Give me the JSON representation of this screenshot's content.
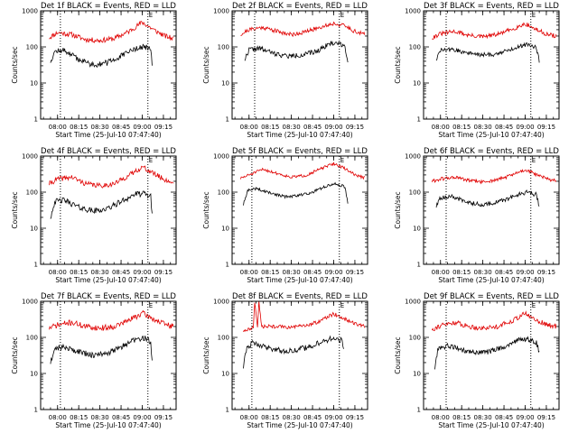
{
  "figure": {
    "background": "#ffffff"
  },
  "chart_data": [
    {
      "type": "line",
      "title": "Det 1f BLACK = Events, RED = LLD",
      "xlabel": "Start Time (25-Jul-10 07:47:40)",
      "ylabel": "Counts/sec",
      "yscale": "log",
      "ylim": [
        1,
        1000
      ],
      "xlim": [
        "07:48",
        "09:24"
      ],
      "x_ticks": [
        "08:00",
        "08:15",
        "08:30",
        "08:45",
        "09:00",
        "09:15"
      ],
      "y_ticks": [
        "1",
        "10",
        "100",
        "1000"
      ],
      "markers": [
        {
          "time": "08:02",
          "label": ""
        },
        {
          "time": "09:04",
          "label": "E"
        }
      ],
      "series": [
        {
          "name": "LLD",
          "color": "#e00000",
          "x": [
            "07:54",
            "08:00",
            "08:10",
            "08:20",
            "08:30",
            "08:40",
            "08:50",
            "09:00",
            "09:08",
            "09:16",
            "09:22"
          ],
          "y": [
            180,
            250,
            220,
            160,
            150,
            170,
            260,
            480,
            300,
            200,
            170
          ],
          "noise": 0.07,
          "seed": 11
        },
        {
          "name": "Events",
          "color": "#000000",
          "x": [
            "07:55",
            "07:58",
            "08:05",
            "08:15",
            "08:25",
            "08:35",
            "08:45",
            "08:55",
            "09:02",
            "09:06",
            "09:07"
          ],
          "y": [
            40,
            75,
            80,
            45,
            32,
            36,
            55,
            90,
            100,
            85,
            30
          ],
          "noise": 0.08,
          "seed": 12
        }
      ]
    },
    {
      "type": "line",
      "title": "Det 2f BLACK = Events, RED = LLD",
      "xlabel": "Start Time (25-Jul-10 07:47:40)",
      "ylabel": "Counts/sec",
      "yscale": "log",
      "ylim": [
        1,
        1000
      ],
      "xlim": [
        "07:48",
        "09:24"
      ],
      "x_ticks": [
        "08:00",
        "08:15",
        "08:30",
        "08:45",
        "09:00",
        "09:15"
      ],
      "y_ticks": [
        "1",
        "10",
        "100",
        "1000"
      ],
      "markers": [
        {
          "time": "08:04",
          "label": ""
        },
        {
          "time": "09:04",
          "label": "E"
        }
      ],
      "series": [
        {
          "name": "LLD",
          "color": "#e00000",
          "x": [
            "07:54",
            "08:00",
            "08:10",
            "08:20",
            "08:30",
            "08:40",
            "08:50",
            "09:00",
            "09:08",
            "09:16",
            "09:22"
          ],
          "y": [
            220,
            300,
            350,
            270,
            220,
            260,
            350,
            450,
            380,
            260,
            220
          ],
          "noise": 0.06,
          "seed": 21
        },
        {
          "name": "Events",
          "color": "#000000",
          "x": [
            "07:57",
            "08:00",
            "08:08",
            "08:18",
            "08:28",
            "08:38",
            "08:48",
            "08:56",
            "09:02",
            "09:08",
            "09:10"
          ],
          "y": [
            45,
            85,
            90,
            65,
            55,
            60,
            75,
            120,
            130,
            110,
            35
          ],
          "noise": 0.07,
          "seed": 22
        }
      ]
    },
    {
      "type": "line",
      "title": "Det 3f BLACK = Events, RED = LLD",
      "xlabel": "Start Time (25-Jul-10 07:47:40)",
      "ylabel": "Counts/sec",
      "yscale": "log",
      "ylim": [
        1,
        1000
      ],
      "xlim": [
        "07:48",
        "09:24"
      ],
      "x_ticks": [
        "08:00",
        "08:15",
        "08:30",
        "08:45",
        "09:00",
        "09:15"
      ],
      "y_ticks": [
        "1",
        "10",
        "100",
        "1000"
      ],
      "markers": [
        {
          "time": "08:04",
          "label": ""
        },
        {
          "time": "09:04",
          "label": "E"
        }
      ],
      "series": [
        {
          "name": "LLD",
          "color": "#e00000",
          "x": [
            "07:54",
            "08:00",
            "08:10",
            "08:20",
            "08:30",
            "08:40",
            "08:50",
            "09:00",
            "09:08",
            "09:16",
            "09:22"
          ],
          "y": [
            180,
            230,
            270,
            210,
            190,
            220,
            300,
            440,
            300,
            220,
            200
          ],
          "noise": 0.06,
          "seed": 31
        },
        {
          "name": "Events",
          "color": "#000000",
          "x": [
            "07:57",
            "08:00",
            "08:08",
            "08:18",
            "08:28",
            "08:38",
            "08:48",
            "08:56",
            "09:02",
            "09:08",
            "09:10"
          ],
          "y": [
            45,
            80,
            85,
            70,
            60,
            62,
            80,
            105,
            120,
            95,
            40
          ],
          "noise": 0.06,
          "seed": 32
        }
      ]
    },
    {
      "type": "line",
      "title": "Det 4f BLACK = Events, RED = LLD",
      "xlabel": "Start Time (25-Jul-10 07:47:40)",
      "ylabel": "Counts/sec",
      "yscale": "log",
      "ylim": [
        1,
        1000
      ],
      "xlim": [
        "07:48",
        "09:24"
      ],
      "x_ticks": [
        "08:00",
        "08:15",
        "08:30",
        "08:45",
        "09:00",
        "09:15"
      ],
      "y_ticks": [
        "1",
        "10",
        "100",
        "1000"
      ],
      "markers": [
        {
          "time": "08:02",
          "label": ""
        },
        {
          "time": "09:04",
          "label": "E"
        }
      ],
      "series": [
        {
          "name": "LLD",
          "color": "#e00000",
          "x": [
            "07:54",
            "08:00",
            "08:10",
            "08:20",
            "08:30",
            "08:40",
            "08:50",
            "09:00",
            "09:08",
            "09:16",
            "09:22"
          ],
          "y": [
            170,
            230,
            260,
            170,
            150,
            170,
            280,
            500,
            330,
            220,
            180
          ],
          "noise": 0.07,
          "seed": 41
        },
        {
          "name": "Events",
          "color": "#000000",
          "x": [
            "07:55",
            "07:58",
            "08:05",
            "08:15",
            "08:25",
            "08:35",
            "08:45",
            "08:55",
            "09:02",
            "09:06",
            "09:07"
          ],
          "y": [
            20,
            55,
            60,
            38,
            30,
            34,
            55,
            88,
            90,
            75,
            25
          ],
          "noise": 0.08,
          "seed": 42
        }
      ]
    },
    {
      "type": "line",
      "title": "Det 5f BLACK = Events, RED = LLD",
      "xlabel": "Start Time (25-Jul-10 07:47:40)",
      "ylabel": "Counts/sec",
      "yscale": "log",
      "ylim": [
        1,
        1000
      ],
      "xlim": [
        "07:48",
        "09:24"
      ],
      "x_ticks": [
        "08:00",
        "08:15",
        "08:30",
        "08:45",
        "09:00",
        "09:15"
      ],
      "y_ticks": [
        "1",
        "10",
        "100",
        "1000"
      ],
      "markers": [
        {
          "time": "08:02",
          "label": ""
        },
        {
          "time": "09:04",
          "label": "E"
        }
      ],
      "series": [
        {
          "name": "LLD",
          "color": "#e00000",
          "x": [
            "07:54",
            "08:00",
            "08:10",
            "08:20",
            "08:30",
            "08:40",
            "08:50",
            "09:00",
            "09:08",
            "09:16",
            "09:22"
          ],
          "y": [
            240,
            300,
            430,
            330,
            260,
            290,
            430,
            620,
            450,
            290,
            250
          ],
          "noise": 0.04,
          "seed": 51
        },
        {
          "name": "Events",
          "color": "#000000",
          "x": [
            "07:56",
            "07:59",
            "08:05",
            "08:15",
            "08:25",
            "08:35",
            "08:45",
            "08:55",
            "09:02",
            "09:08",
            "09:10"
          ],
          "y": [
            45,
            110,
            125,
            95,
            75,
            80,
            100,
            150,
            170,
            140,
            50
          ],
          "noise": 0.04,
          "seed": 52
        }
      ]
    },
    {
      "type": "line",
      "title": "Det 6f BLACK = Events, RED = LLD",
      "xlabel": "Start Time (25-Jul-10 07:47:40)",
      "ylabel": "Counts/sec",
      "yscale": "log",
      "ylim": [
        1,
        1000
      ],
      "xlim": [
        "07:48",
        "09:24"
      ],
      "x_ticks": [
        "08:00",
        "08:15",
        "08:30",
        "08:45",
        "09:00",
        "09:15"
      ],
      "y_ticks": [
        "1",
        "10",
        "100",
        "1000"
      ],
      "markers": [
        {
          "time": "08:04",
          "label": ""
        },
        {
          "time": "09:04",
          "label": "E"
        }
      ],
      "series": [
        {
          "name": "LLD",
          "color": "#e00000",
          "x": [
            "07:54",
            "08:00",
            "08:10",
            "08:20",
            "08:30",
            "08:40",
            "08:50",
            "09:00",
            "09:08",
            "09:16",
            "09:22"
          ],
          "y": [
            200,
            230,
            260,
            210,
            190,
            220,
            290,
            420,
            300,
            230,
            210
          ],
          "noise": 0.05,
          "seed": 61
        },
        {
          "name": "Events",
          "color": "#000000",
          "x": [
            "07:57",
            "08:00",
            "08:08",
            "08:18",
            "08:28",
            "08:38",
            "08:48",
            "08:56",
            "09:02",
            "09:08",
            "09:10"
          ],
          "y": [
            40,
            70,
            75,
            55,
            45,
            50,
            65,
            90,
            100,
            85,
            40
          ],
          "noise": 0.06,
          "seed": 62
        }
      ]
    },
    {
      "type": "line",
      "title": "Det 7f BLACK = Events, RED = LLD",
      "xlabel": "Start Time (25-Jul-10 07:47:40)",
      "ylabel": "Counts/sec",
      "yscale": "log",
      "ylim": [
        1,
        1000
      ],
      "xlim": [
        "07:48",
        "09:24"
      ],
      "x_ticks": [
        "08:00",
        "08:15",
        "08:30",
        "08:45",
        "09:00",
        "09:15"
      ],
      "y_ticks": [
        "1",
        "10",
        "100",
        "1000"
      ],
      "markers": [
        {
          "time": "08:02",
          "label": ""
        },
        {
          "time": "09:04",
          "label": "E"
        }
      ],
      "series": [
        {
          "name": "LLD",
          "color": "#e00000",
          "x": [
            "07:54",
            "08:00",
            "08:10",
            "08:20",
            "08:30",
            "08:40",
            "08:50",
            "09:00",
            "09:08",
            "09:16",
            "09:22"
          ],
          "y": [
            180,
            220,
            260,
            200,
            180,
            200,
            290,
            470,
            320,
            230,
            200
          ],
          "noise": 0.08,
          "seed": 71
        },
        {
          "name": "Events",
          "color": "#000000",
          "x": [
            "07:55",
            "07:58",
            "08:05",
            "08:15",
            "08:25",
            "08:35",
            "08:45",
            "08:55",
            "09:02",
            "09:06",
            "09:07"
          ],
          "y": [
            20,
            50,
            55,
            40,
            32,
            35,
            55,
            85,
            95,
            75,
            22
          ],
          "noise": 0.08,
          "seed": 72
        }
      ]
    },
    {
      "type": "line",
      "title": "Det 8f BLACK = Events, RED = LLD",
      "xlabel": "Start Time (25-Jul-10 07:47:40)",
      "ylabel": "Counts/sec",
      "yscale": "log",
      "ylim": [
        1,
        1000
      ],
      "xlim": [
        "07:48",
        "09:24"
      ],
      "x_ticks": [
        "08:00",
        "08:15",
        "08:30",
        "08:45",
        "09:00",
        "09:15"
      ],
      "y_ticks": [
        "1",
        "10",
        "100",
        "1000"
      ],
      "markers": [
        {
          "time": "08:02",
          "label": ""
        },
        {
          "time": "09:04",
          "label": "E"
        }
      ],
      "series": [
        {
          "name": "LLD",
          "color": "#e00000",
          "x": [
            "07:56",
            "08:00",
            "08:03",
            "08:04",
            "08:06",
            "08:07",
            "08:09",
            "08:20",
            "08:30",
            "08:40",
            "08:50",
            "09:00",
            "09:08",
            "09:16",
            "09:22"
          ],
          "y": [
            150,
            170,
            180,
            1000,
            190,
            1000,
            200,
            200,
            190,
            210,
            280,
            450,
            320,
            230,
            200
          ],
          "noise": 0.05,
          "seed": 81
        },
        {
          "name": "Events",
          "color": "#000000",
          "x": [
            "07:56",
            "07:58",
            "08:02",
            "08:05",
            "08:15",
            "08:25",
            "08:35",
            "08:45",
            "08:55",
            "09:02",
            "09:06",
            "09:07"
          ],
          "y": [
            15,
            45,
            70,
            65,
            50,
            42,
            45,
            60,
            85,
            95,
            80,
            50
          ],
          "noise": 0.08,
          "seed": 82
        }
      ]
    },
    {
      "type": "line",
      "title": "Det 9f BLACK = Events, RED = LLD",
      "xlabel": "Start Time (25-Jul-10 07:47:40)",
      "ylabel": "Counts/sec",
      "yscale": "log",
      "ylim": [
        1,
        1000
      ],
      "xlim": [
        "07:48",
        "09:24"
      ],
      "x_ticks": [
        "08:00",
        "08:15",
        "08:30",
        "08:45",
        "09:00",
        "09:15"
      ],
      "y_ticks": [
        "1",
        "10",
        "100",
        "1000"
      ],
      "markers": [
        {
          "time": "08:04",
          "label": ""
        },
        {
          "time": "09:04",
          "label": "E"
        }
      ],
      "series": [
        {
          "name": "LLD",
          "color": "#e00000",
          "x": [
            "07:54",
            "08:00",
            "08:10",
            "08:20",
            "08:30",
            "08:40",
            "08:50",
            "09:00",
            "09:08",
            "09:16",
            "09:22"
          ],
          "y": [
            170,
            210,
            260,
            200,
            180,
            200,
            280,
            460,
            300,
            220,
            200
          ],
          "noise": 0.07,
          "seed": 91
        },
        {
          "name": "Events",
          "color": "#000000",
          "x": [
            "07:56",
            "07:58",
            "08:05",
            "08:15",
            "08:25",
            "08:35",
            "08:45",
            "08:55",
            "09:02",
            "09:08",
            "09:10"
          ],
          "y": [
            14,
            45,
            60,
            45,
            38,
            40,
            55,
            85,
            90,
            70,
            40
          ],
          "noise": 0.07,
          "seed": 92
        }
      ]
    }
  ]
}
